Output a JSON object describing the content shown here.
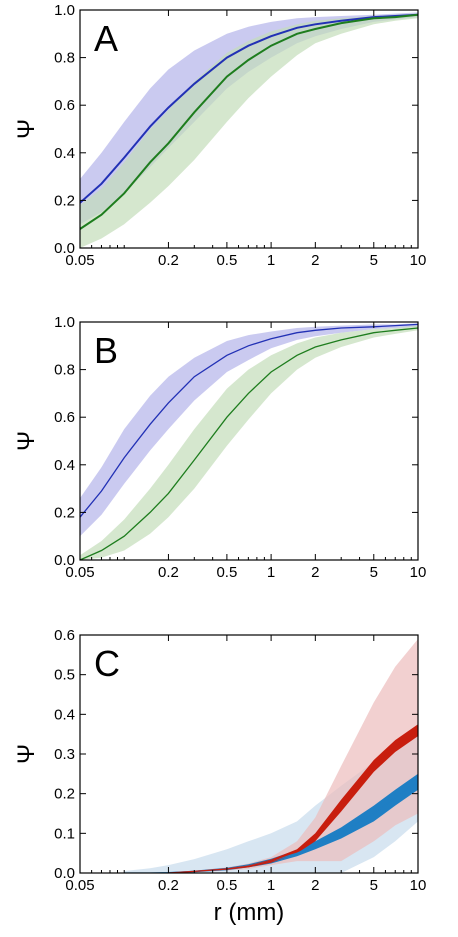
{
  "chart_data": [
    {
      "type": "area",
      "panel_label": "A",
      "ylabel": "Ψ",
      "xlabel": "",
      "x_scale": "log",
      "xlim": [
        0.05,
        10
      ],
      "ylim": [
        0,
        1.0
      ],
      "x_ticks": [
        0.05,
        0.2,
        0.5,
        1,
        2,
        5,
        10
      ],
      "x_tick_labels": [
        "0.05",
        "0.2",
        "0.5",
        "1",
        "2",
        "5",
        "10"
      ],
      "y_ticks": [
        0,
        0.2,
        0.4,
        0.6,
        0.8,
        1.0
      ],
      "y_tick_labels": [
        "0.0",
        "0.2",
        "0.4",
        "0.6",
        "0.8",
        "1.0"
      ],
      "grid": false,
      "series": [
        {
          "color": "#2231b5",
          "band_color": "#b4b4ea",
          "x": [
            0.05,
            0.07,
            0.1,
            0.15,
            0.2,
            0.3,
            0.5,
            0.7,
            1,
            1.5,
            2,
            3,
            5,
            7,
            10
          ],
          "y": [
            0.19,
            0.27,
            0.38,
            0.51,
            0.59,
            0.69,
            0.8,
            0.85,
            0.89,
            0.925,
            0.94,
            0.955,
            0.97,
            0.975,
            0.98
          ],
          "upper": [
            0.29,
            0.4,
            0.53,
            0.67,
            0.75,
            0.83,
            0.9,
            0.93,
            0.95,
            0.965,
            0.97,
            0.975,
            0.98,
            0.985,
            0.99
          ],
          "lower": [
            0.1,
            0.15,
            0.23,
            0.34,
            0.42,
            0.53,
            0.67,
            0.74,
            0.8,
            0.86,
            0.89,
            0.92,
            0.95,
            0.96,
            0.97
          ]
        },
        {
          "color": "#1e7d1e",
          "band_color": "#c3ddb9",
          "x": [
            0.05,
            0.07,
            0.1,
            0.15,
            0.2,
            0.3,
            0.5,
            0.7,
            1,
            1.5,
            2,
            3,
            5,
            7,
            10
          ],
          "y": [
            0.08,
            0.14,
            0.23,
            0.36,
            0.44,
            0.57,
            0.72,
            0.79,
            0.85,
            0.9,
            0.92,
            0.945,
            0.965,
            0.97,
            0.98
          ],
          "upper": [
            0.18,
            0.25,
            0.36,
            0.5,
            0.58,
            0.7,
            0.82,
            0.87,
            0.91,
            0.94,
            0.955,
            0.965,
            0.975,
            0.98,
            0.985
          ],
          "lower": [
            0.0,
            0.04,
            0.1,
            0.19,
            0.26,
            0.37,
            0.53,
            0.63,
            0.72,
            0.81,
            0.86,
            0.9,
            0.94,
            0.955,
            0.965
          ]
        }
      ]
    },
    {
      "type": "area",
      "panel_label": "B",
      "ylabel": "Ψ",
      "xlabel": "",
      "x_scale": "log",
      "xlim": [
        0.05,
        10
      ],
      "ylim": [
        0,
        1.0
      ],
      "x_ticks": [
        0.05,
        0.2,
        0.5,
        1,
        2,
        5,
        10
      ],
      "x_tick_labels": [
        "0.05",
        "0.2",
        "0.5",
        "1",
        "2",
        "5",
        "10"
      ],
      "y_ticks": [
        0,
        0.2,
        0.4,
        0.6,
        0.8,
        1.0
      ],
      "y_tick_labels": [
        "0.0",
        "0.2",
        "0.4",
        "0.6",
        "0.8",
        "1.0"
      ],
      "grid": false,
      "series": [
        {
          "color": "#2231b5",
          "band_color": "#b4b4ea",
          "x": [
            0.05,
            0.07,
            0.1,
            0.15,
            0.2,
            0.3,
            0.5,
            0.7,
            1,
            1.5,
            2,
            3,
            5,
            7,
            10
          ],
          "y": [
            0.18,
            0.29,
            0.43,
            0.57,
            0.66,
            0.77,
            0.86,
            0.9,
            0.93,
            0.955,
            0.965,
            0.975,
            0.98,
            0.985,
            0.99
          ],
          "upper": [
            0.26,
            0.39,
            0.55,
            0.69,
            0.77,
            0.85,
            0.92,
            0.945,
            0.96,
            0.975,
            0.98,
            0.985,
            0.99,
            0.99,
            0.995
          ],
          "lower": [
            0.1,
            0.19,
            0.32,
            0.46,
            0.55,
            0.67,
            0.79,
            0.84,
            0.89,
            0.925,
            0.94,
            0.955,
            0.97,
            0.975,
            0.98
          ]
        },
        {
          "color": "#1e7d1e",
          "band_color": "#c3ddb9",
          "x": [
            0.05,
            0.07,
            0.1,
            0.15,
            0.2,
            0.3,
            0.5,
            0.7,
            1,
            1.5,
            2,
            3,
            5,
            7,
            10
          ],
          "y": [
            0.0,
            0.04,
            0.1,
            0.2,
            0.28,
            0.42,
            0.6,
            0.7,
            0.79,
            0.86,
            0.895,
            0.925,
            0.955,
            0.965,
            0.975
          ],
          "upper": [
            0.02,
            0.08,
            0.17,
            0.3,
            0.4,
            0.55,
            0.72,
            0.8,
            0.86,
            0.91,
            0.935,
            0.955,
            0.97,
            0.975,
            0.985
          ],
          "lower": [
            0.0,
            0.01,
            0.04,
            0.11,
            0.18,
            0.3,
            0.48,
            0.59,
            0.7,
            0.8,
            0.85,
            0.895,
            0.935,
            0.95,
            0.965
          ]
        }
      ]
    },
    {
      "type": "area",
      "panel_label": "C",
      "ylabel": "Ψ",
      "xlabel": "r (mm)",
      "x_scale": "log",
      "xlim": [
        0.05,
        10
      ],
      "ylim": [
        0,
        0.6
      ],
      "x_ticks": [
        0.05,
        0.2,
        0.5,
        1,
        2,
        5,
        10
      ],
      "x_tick_labels": [
        "0.05",
        "0.2",
        "0.5",
        "1",
        "2",
        "5",
        "10"
      ],
      "y_ticks": [
        0,
        0.1,
        0.2,
        0.3,
        0.4,
        0.5,
        0.6
      ],
      "y_tick_labels": [
        "0.0",
        "0.1",
        "0.2",
        "0.3",
        "0.4",
        "0.5",
        "0.6"
      ],
      "grid": false,
      "series": [
        {
          "color": "#1f7fc4",
          "band_color": "#c8dced",
          "x": [
            0.1,
            0.15,
            0.2,
            0.3,
            0.5,
            0.7,
            1,
            1.5,
            2,
            3,
            5,
            7,
            10
          ],
          "y": [
            0.0,
            0.0,
            0.001,
            0.004,
            0.01,
            0.018,
            0.03,
            0.05,
            0.07,
            0.1,
            0.15,
            0.19,
            0.23
          ],
          "mid_upper": [
            0.0,
            0.0,
            0.002,
            0.006,
            0.013,
            0.022,
            0.036,
            0.058,
            0.08,
            0.115,
            0.17,
            0.21,
            0.25
          ],
          "mid_lower": [
            0.0,
            0.0,
            0.0,
            0.002,
            0.007,
            0.014,
            0.024,
            0.042,
            0.06,
            0.087,
            0.13,
            0.17,
            0.21
          ],
          "upper": [
            0.005,
            0.012,
            0.02,
            0.035,
            0.06,
            0.08,
            0.1,
            0.13,
            0.17,
            0.22,
            0.28,
            0.32,
            0.37
          ],
          "lower": [
            0.0,
            0.0,
            0.0,
            0.0,
            0.0,
            0.0,
            0.0,
            0.0,
            0.0,
            0.0,
            0.04,
            0.08,
            0.13
          ]
        },
        {
          "color": "#c81e0e",
          "band_color": "#edbcbc",
          "x": [
            0.2,
            0.3,
            0.5,
            0.7,
            1,
            1.5,
            2,
            3,
            5,
            7,
            10
          ],
          "y": [
            0.0,
            0.004,
            0.01,
            0.017,
            0.03,
            0.055,
            0.09,
            0.17,
            0.27,
            0.32,
            0.36
          ],
          "mid_upper": [
            0.0,
            0.005,
            0.012,
            0.02,
            0.034,
            0.06,
            0.1,
            0.185,
            0.285,
            0.335,
            0.375
          ],
          "mid_lower": [
            0.0,
            0.003,
            0.008,
            0.014,
            0.026,
            0.05,
            0.08,
            0.155,
            0.255,
            0.305,
            0.345
          ],
          "upper": [
            0.0,
            0.006,
            0.014,
            0.024,
            0.04,
            0.08,
            0.14,
            0.27,
            0.43,
            0.52,
            0.59
          ],
          "lower": [
            0.0,
            0.002,
            0.006,
            0.01,
            0.02,
            0.03,
            0.03,
            0.03,
            0.08,
            0.12,
            0.15
          ]
        }
      ]
    }
  ]
}
